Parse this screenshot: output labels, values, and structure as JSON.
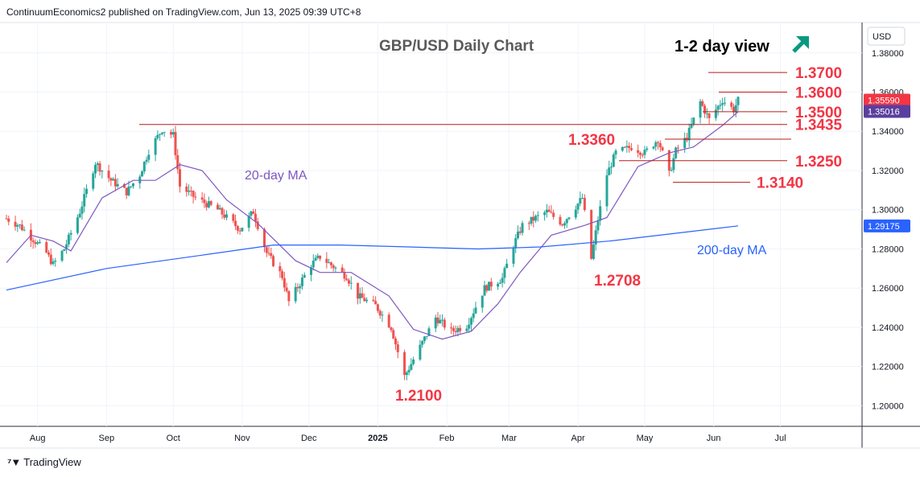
{
  "publisher": "ContinuumEconomics2 published on TradingView.com, Jun 13, 2025 09:39 UTC+8",
  "brand": "TradingView",
  "colors": {
    "up": "#26a69a",
    "down": "#ef5350",
    "ma20": "#7e57c2",
    "ma200": "#2962ff",
    "level_text": "#f23645",
    "arrow": "#089981",
    "price_tag": "#f23645",
    "tag2": "#5b3f9e",
    "tag3": "#2962ff"
  },
  "chart_data": {
    "type": "candlestick",
    "title": "GBP/USD Daily Chart",
    "view_label": "1-2 day view",
    "view_direction": "up-arrow-icon",
    "currency": "USD",
    "y_ticks": [
      "1.38000",
      "1.36000",
      "1.34000",
      "1.32000",
      "1.30000",
      "1.28000",
      "1.26000",
      "1.24000",
      "1.22000",
      "1.20000"
    ],
    "ylim": [
      1.1895,
      1.3955
    ],
    "x_ticks": [
      "Aug",
      "Sep",
      "Oct",
      "Nov",
      "Dec",
      "2025",
      "Feb",
      "Mar",
      "Apr",
      "May",
      "Jun",
      "Jul"
    ],
    "series": [
      {
        "name": "20-day MA",
        "label": "20-day MA"
      },
      {
        "name": "200-day MA",
        "label": "200-day MA"
      }
    ],
    "price_tags": [
      {
        "text": "1.35590",
        "value": 1.3559
      },
      {
        "text": "1.35016",
        "value": 1.35016
      },
      {
        "text": "1.29175",
        "value": 1.29175
      }
    ],
    "levels": [
      {
        "text": "1.3700",
        "value": 1.37
      },
      {
        "text": "1.3600",
        "value": 1.36
      },
      {
        "text": "1.3500",
        "value": 1.35
      },
      {
        "text": "1.3435",
        "value": 1.3435
      },
      {
        "text": "1.3360",
        "value": 1.336
      },
      {
        "text": "1.3250",
        "value": 1.325
      },
      {
        "text": "1.3140",
        "value": 1.314
      }
    ],
    "annotations": [
      {
        "text": "1.2708",
        "value": 1.2708
      },
      {
        "text": "1.2100",
        "value": 1.21
      }
    ],
    "close_path": [
      [
        "2024-07-18",
        1.2955
      ],
      [
        "2024-07-24",
        1.2918
      ],
      [
        "2024-07-30",
        1.285
      ],
      [
        "2024-08-05",
        1.278
      ],
      [
        "2024-08-08",
        1.272
      ],
      [
        "2024-08-13",
        1.28
      ],
      [
        "2024-08-20",
        1.299
      ],
      [
        "2024-08-27",
        1.324
      ],
      [
        "2024-09-03",
        1.315
      ],
      [
        "2024-09-10",
        1.309
      ],
      [
        "2024-09-16",
        1.318
      ],
      [
        "2024-09-20",
        1.33
      ],
      [
        "2024-09-26",
        1.341
      ],
      [
        "2024-10-01",
        1.338
      ],
      [
        "2024-10-04",
        1.312
      ],
      [
        "2024-10-11",
        1.306
      ],
      [
        "2024-10-21",
        1.3
      ],
      [
        "2024-10-31",
        1.29
      ],
      [
        "2024-11-06",
        1.299
      ],
      [
        "2024-11-12",
        1.278
      ],
      [
        "2024-11-19",
        1.266
      ],
      [
        "2024-11-22",
        1.253
      ],
      [
        "2024-12-02",
        1.272
      ],
      [
        "2024-12-06",
        1.276
      ],
      [
        "2024-12-18",
        1.266
      ],
      [
        "2024-12-23",
        1.256
      ],
      [
        "2024-12-31",
        1.251
      ],
      [
        "2025-01-07",
        1.24
      ],
      [
        "2025-01-13",
        1.215
      ],
      [
        "2025-01-20",
        1.23
      ],
      [
        "2025-01-27",
        1.245
      ],
      [
        "2025-02-03",
        1.238
      ],
      [
        "2025-02-10",
        1.241
      ],
      [
        "2025-02-18",
        1.26
      ],
      [
        "2025-02-26",
        1.265
      ],
      [
        "2025-03-03",
        1.282
      ],
      [
        "2025-03-07",
        1.292
      ],
      [
        "2025-03-18",
        1.299
      ],
      [
        "2025-03-25",
        1.293
      ],
      [
        "2025-04-03",
        1.306
      ],
      [
        "2025-04-07",
        1.275
      ],
      [
        "2025-04-10",
        1.295
      ],
      [
        "2025-04-14",
        1.318
      ],
      [
        "2025-04-18",
        1.329
      ],
      [
        "2025-04-25",
        1.332
      ],
      [
        "2025-05-01",
        1.329
      ],
      [
        "2025-05-07",
        1.336
      ],
      [
        "2025-05-12",
        1.318
      ],
      [
        "2025-05-15",
        1.33
      ],
      [
        "2025-05-20",
        1.337
      ],
      [
        "2025-05-26",
        1.355
      ],
      [
        "2025-05-30",
        1.346
      ],
      [
        "2025-06-05",
        1.356
      ],
      [
        "2025-06-10",
        1.351
      ],
      [
        "2025-06-12",
        1.3559
      ]
    ],
    "ma20_path": [
      [
        "2024-07-18",
        1.273
      ],
      [
        "2024-07-29",
        1.287
      ],
      [
        "2024-08-08",
        1.284
      ],
      [
        "2024-08-16",
        1.279
      ],
      [
        "2024-08-30",
        1.306
      ],
      [
        "2024-09-13",
        1.315
      ],
      [
        "2024-09-23",
        1.315
      ],
      [
        "2024-10-04",
        1.323
      ],
      [
        "2024-10-14",
        1.32
      ],
      [
        "2024-10-25",
        1.305
      ],
      [
        "2024-11-08",
        1.293
      ],
      [
        "2024-11-25",
        1.274
      ],
      [
        "2024-12-06",
        1.268
      ],
      [
        "2024-12-20",
        1.268
      ],
      [
        "2025-01-06",
        1.256
      ],
      [
        "2025-01-17",
        1.239
      ],
      [
        "2025-01-30",
        1.234
      ],
      [
        "2025-02-12",
        1.238
      ],
      [
        "2025-02-24",
        1.252
      ],
      [
        "2025-03-06",
        1.268
      ],
      [
        "2025-03-20",
        1.287
      ],
      [
        "2025-04-04",
        1.292
      ],
      [
        "2025-04-14",
        1.296
      ],
      [
        "2025-04-28",
        1.322
      ],
      [
        "2025-05-12",
        1.329
      ],
      [
        "2025-05-23",
        1.332
      ],
      [
        "2025-06-05",
        1.343
      ],
      [
        "2025-06-12",
        1.35
      ]
    ],
    "ma200_path": [
      [
        "2024-07-18",
        1.259
      ],
      [
        "2024-09-01",
        1.27
      ],
      [
        "2024-10-15",
        1.277
      ],
      [
        "2024-11-15",
        1.282
      ],
      [
        "2024-12-15",
        1.282
      ],
      [
        "2025-01-15",
        1.281
      ],
      [
        "2025-02-15",
        1.28
      ],
      [
        "2025-03-15",
        1.281
      ],
      [
        "2025-04-15",
        1.284
      ],
      [
        "2025-05-15",
        1.288
      ],
      [
        "2025-06-12",
        1.29175
      ]
    ]
  }
}
